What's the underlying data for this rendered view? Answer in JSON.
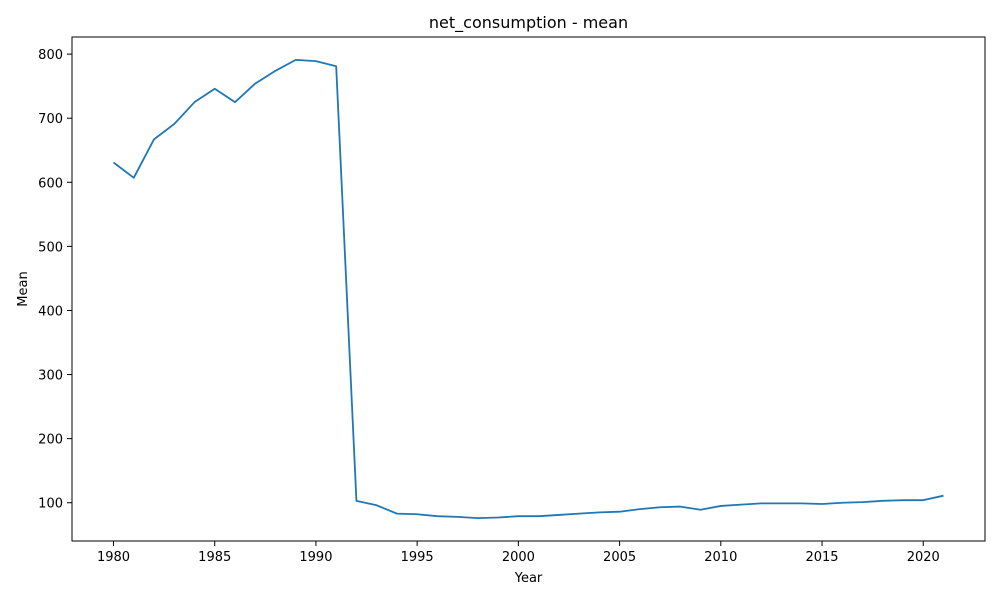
{
  "chart_data": {
    "type": "line",
    "title": "net_consumption - mean",
    "xlabel": "Year",
    "ylabel": "Mean",
    "xlim": [
      1977.95,
      2023.05
    ],
    "ylim": [
      40.3,
      826.7
    ],
    "xticks": [
      1980,
      1985,
      1990,
      1995,
      2000,
      2005,
      2010,
      2015,
      2020
    ],
    "yticks": [
      100,
      200,
      300,
      400,
      500,
      600,
      700,
      800
    ],
    "grid": false,
    "legend": "none",
    "series": [
      {
        "color": "#1f77b4",
        "x": [
          1980,
          1981,
          1982,
          1983,
          1984,
          1985,
          1986,
          1987,
          1988,
          1989,
          1990,
          1991,
          1992,
          1993,
          1994,
          1995,
          1996,
          1997,
          1998,
          1999,
          2000,
          2001,
          2002,
          2003,
          2004,
          2005,
          2006,
          2007,
          2008,
          2009,
          2010,
          2011,
          2012,
          2013,
          2014,
          2015,
          2016,
          2017,
          2018,
          2019,
          2020,
          2021
        ],
        "y": [
          631,
          607,
          667,
          691,
          725,
          746,
          725,
          754,
          774,
          791,
          789,
          781,
          103,
          96,
          83,
          82,
          79,
          78,
          76,
          77,
          79,
          79,
          81,
          83,
          85,
          86,
          90,
          93,
          94,
          89,
          95,
          97,
          99,
          99,
          99,
          98,
          100,
          101,
          103,
          104,
          104,
          111
        ]
      }
    ]
  }
}
